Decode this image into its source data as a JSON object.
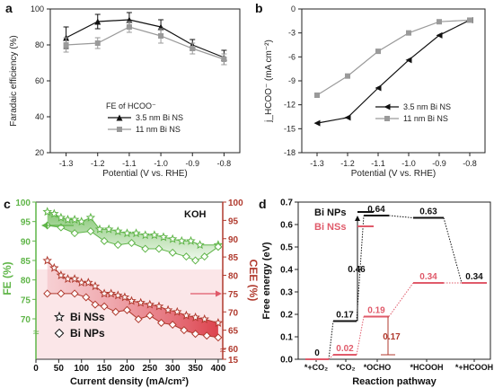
{
  "colors": {
    "black": "#111111",
    "gray": "#9a9a9a",
    "green": "#5fb548",
    "red": "#b03a2e",
    "pink": "#e05a6a",
    "dark": "#222222"
  },
  "chart_data": [
    {
      "panel": "a",
      "type": "line",
      "ylabel": "Faradaic efficiency (%)",
      "xlabel": "Potential (V vs. RHE)",
      "x": [
        -1.3,
        -1.2,
        -1.1,
        -1.0,
        -0.9,
        -0.8
      ],
      "xlim": [
        -1.35,
        -0.75
      ],
      "ylim": [
        20,
        100
      ],
      "xticks": [
        "-1.3",
        "-1.2",
        "-1.1",
        "-1.0",
        "-0.9",
        "-0.8"
      ],
      "yticks": [
        "20",
        "40",
        "60",
        "80",
        "100"
      ],
      "legend_title": "FE of HCOO⁻",
      "legend_position": "lower-center",
      "series": [
        {
          "name": "3.5 nm Bi NS",
          "values": [
            84,
            93,
            94,
            90,
            80,
            73
          ],
          "errors": [
            6,
            4,
            4,
            4,
            3,
            4
          ],
          "marker": "triangle",
          "color": "#111111"
        },
        {
          "name": "11 nm Bi NS",
          "values": [
            80,
            81,
            90,
            85,
            78,
            72
          ],
          "errors": [
            4,
            3,
            3,
            4,
            3,
            3
          ],
          "marker": "square",
          "color": "#9a9a9a"
        }
      ]
    },
    {
      "panel": "b",
      "type": "line",
      "ylabel": "j_HCOO⁻ (mA cm⁻²)",
      "xlabel": "Potential (V vs. RHE)",
      "x": [
        -1.3,
        -1.2,
        -1.1,
        -1.0,
        -0.9,
        -0.8
      ],
      "xlim": [
        -1.35,
        -0.75
      ],
      "ylim": [
        -18,
        0
      ],
      "xticks": [
        "-1.3",
        "-1.2",
        "-1.1",
        "-1.0",
        "-0.9",
        "-0.8"
      ],
      "yticks": [
        "0",
        "-3",
        "-6",
        "-9",
        "-12",
        "-15",
        "-18"
      ],
      "legend_position": "lower-right",
      "series": [
        {
          "name": "3.5 nm Bi NS",
          "values": [
            -14.3,
            -13.6,
            -9.9,
            -6.4,
            -3.3,
            -1.4
          ],
          "marker": "triangle",
          "color": "#111111"
        },
        {
          "name": "11 nm Bi NS",
          "values": [
            -10.8,
            -8.4,
            -5.3,
            -3.0,
            -1.6,
            -1.4
          ],
          "marker": "square",
          "color": "#9a9a9a"
        }
      ]
    },
    {
      "panel": "c",
      "type": "line",
      "annotation": "KOH",
      "xlabel": "Current density (mA/cm²)",
      "ylabel_left": "FE (%)",
      "ylabel_right": "CEE (%)",
      "xlim": [
        0,
        410
      ],
      "xticks": [
        "0",
        "50",
        "100",
        "150",
        "200",
        "250",
        "300",
        "350",
        "400"
      ],
      "yticks_left": [
        "70",
        "75",
        "80",
        "85",
        "90",
        "95",
        "100"
      ],
      "yticks_right": [
        "15",
        "60",
        "65",
        "70",
        "75",
        "80",
        "85",
        "90",
        "95",
        "100"
      ],
      "legend": [
        {
          "name": "Bi NSs",
          "marker": "star"
        },
        {
          "name": "Bi NPs",
          "marker": "diamond"
        }
      ],
      "series": [
        {
          "name": "Bi NSs FE",
          "axis": "left",
          "marker": "star",
          "color": "#5fb548",
          "x": [
            25,
            40,
            55,
            70,
            85,
            100,
            120,
            140,
            160,
            180,
            200,
            220,
            240,
            260,
            280,
            300,
            320,
            340,
            360,
            400
          ],
          "values": [
            97.5,
            97,
            96,
            95.5,
            95.5,
            95,
            96,
            93,
            93,
            92.5,
            92,
            92,
            91.5,
            91.5,
            91,
            90.5,
            90,
            90,
            89,
            89
          ]
        },
        {
          "name": "Bi NPs FE",
          "axis": "left",
          "marker": "diamond",
          "color": "#5fb548",
          "x": [
            25,
            55,
            85,
            120,
            150,
            180,
            210,
            240,
            270,
            300,
            330,
            350,
            370,
            400
          ],
          "values": [
            94,
            93.5,
            92,
            92.5,
            90,
            89,
            89.5,
            88,
            88,
            87,
            86,
            85,
            86,
            88.5
          ]
        },
        {
          "name": "Bi NSs CEE",
          "axis": "right",
          "marker": "star",
          "color": "#b03a2e",
          "x": [
            25,
            40,
            55,
            70,
            85,
            100,
            115,
            130,
            150,
            165,
            180,
            195,
            210,
            230,
            250,
            270,
            290,
            310,
            330,
            350,
            370,
            400
          ],
          "values": [
            84,
            82,
            80,
            79,
            79,
            78,
            78,
            77,
            75,
            75,
            74.5,
            74,
            73,
            72.5,
            72,
            71.5,
            70.5,
            70,
            69,
            68.5,
            68,
            67
          ]
        },
        {
          "name": "Bi NPs CEE",
          "axis": "right",
          "marker": "diamond",
          "color": "#b03a2e",
          "x": [
            25,
            55,
            85,
            110,
            130,
            150,
            175,
            200,
            225,
            250,
            275,
            300,
            325,
            350,
            375,
            400
          ],
          "values": [
            75,
            75,
            75,
            74,
            72,
            71.5,
            70,
            70.5,
            68,
            69,
            67,
            66.5,
            65,
            64,
            63.5,
            63
          ]
        }
      ]
    },
    {
      "panel": "d",
      "type": "line",
      "ylabel": "Free energy (eV)",
      "xlabel": "Reaction pathway",
      "ylim": [
        0,
        0.7
      ],
      "yticks": [
        "0.0",
        "0.1",
        "0.2",
        "0.3",
        "0.4",
        "0.5",
        "0.6",
        "0.7"
      ],
      "categories": [
        "*+CO₂",
        "*CO₂",
        "*OCHO",
        "*HCOOH",
        "*+HCOOH"
      ],
      "series": [
        {
          "name": "Bi NPs",
          "color": "#111111",
          "values": [
            0,
            0.17,
            0.64,
            0.63,
            0.34
          ],
          "labels": [
            "0",
            "0.17",
            "0.64",
            "0.63",
            "0.34"
          ]
        },
        {
          "name": "Bi NSs",
          "color": "#e05a6a",
          "values": [
            0,
            0.02,
            0.19,
            0.34,
            0.34
          ],
          "labels": [
            "",
            "0.02",
            "0.19",
            "0.34",
            ""
          ]
        }
      ],
      "barriers": [
        {
          "label": "0.46",
          "series": "Bi NPs",
          "from": 0.17,
          "to": 0.64
        },
        {
          "label": "0.17",
          "series": "Bi NSs",
          "from": 0.02,
          "to": 0.19
        }
      ]
    }
  ]
}
